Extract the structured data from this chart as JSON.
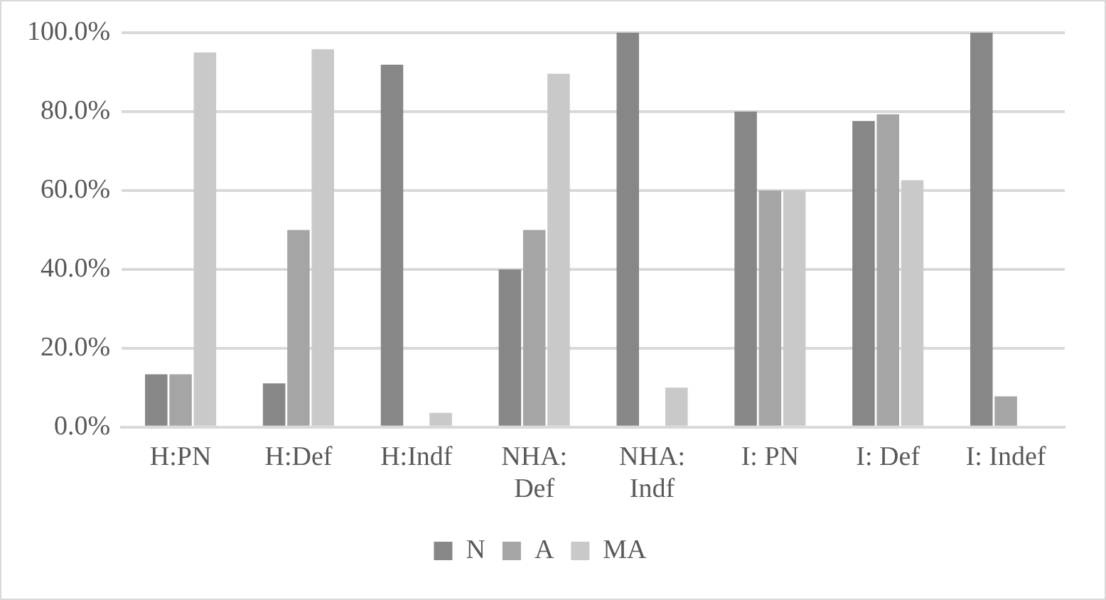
{
  "chart_data": {
    "type": "bar",
    "categories": [
      "H:PN",
      "H:Def",
      "H:Indf",
      "NHA: Def",
      "NHA: Indf",
      "I: PN",
      "I: Def",
      "I: Indef"
    ],
    "series": [
      {
        "name": "N",
        "color": "#878787",
        "values": [
          13.4,
          11.1,
          91.9,
          40,
          100,
          80,
          77.6,
          100
        ]
      },
      {
        "name": "A",
        "color": "#a5a5a5",
        "values": [
          13.4,
          50,
          0,
          50,
          0,
          60,
          79.3,
          7.8
        ]
      },
      {
        "name": "MA",
        "color": "#c9c9c9",
        "values": [
          95,
          95.8,
          3.6,
          89.6,
          10,
          60,
          62.6,
          0
        ]
      }
    ],
    "ylim": [
      0,
      100
    ],
    "yticks": [
      {
        "value": 0,
        "label": "0.0%"
      },
      {
        "value": 20,
        "label": "20.0%"
      },
      {
        "value": 40,
        "label": "40.0%"
      },
      {
        "value": 60,
        "label": "60.0%"
      },
      {
        "value": 80,
        "label": "80.0%"
      },
      {
        "value": 100,
        "label": "100.0%"
      }
    ],
    "grid": "y",
    "legend": "bottom"
  }
}
